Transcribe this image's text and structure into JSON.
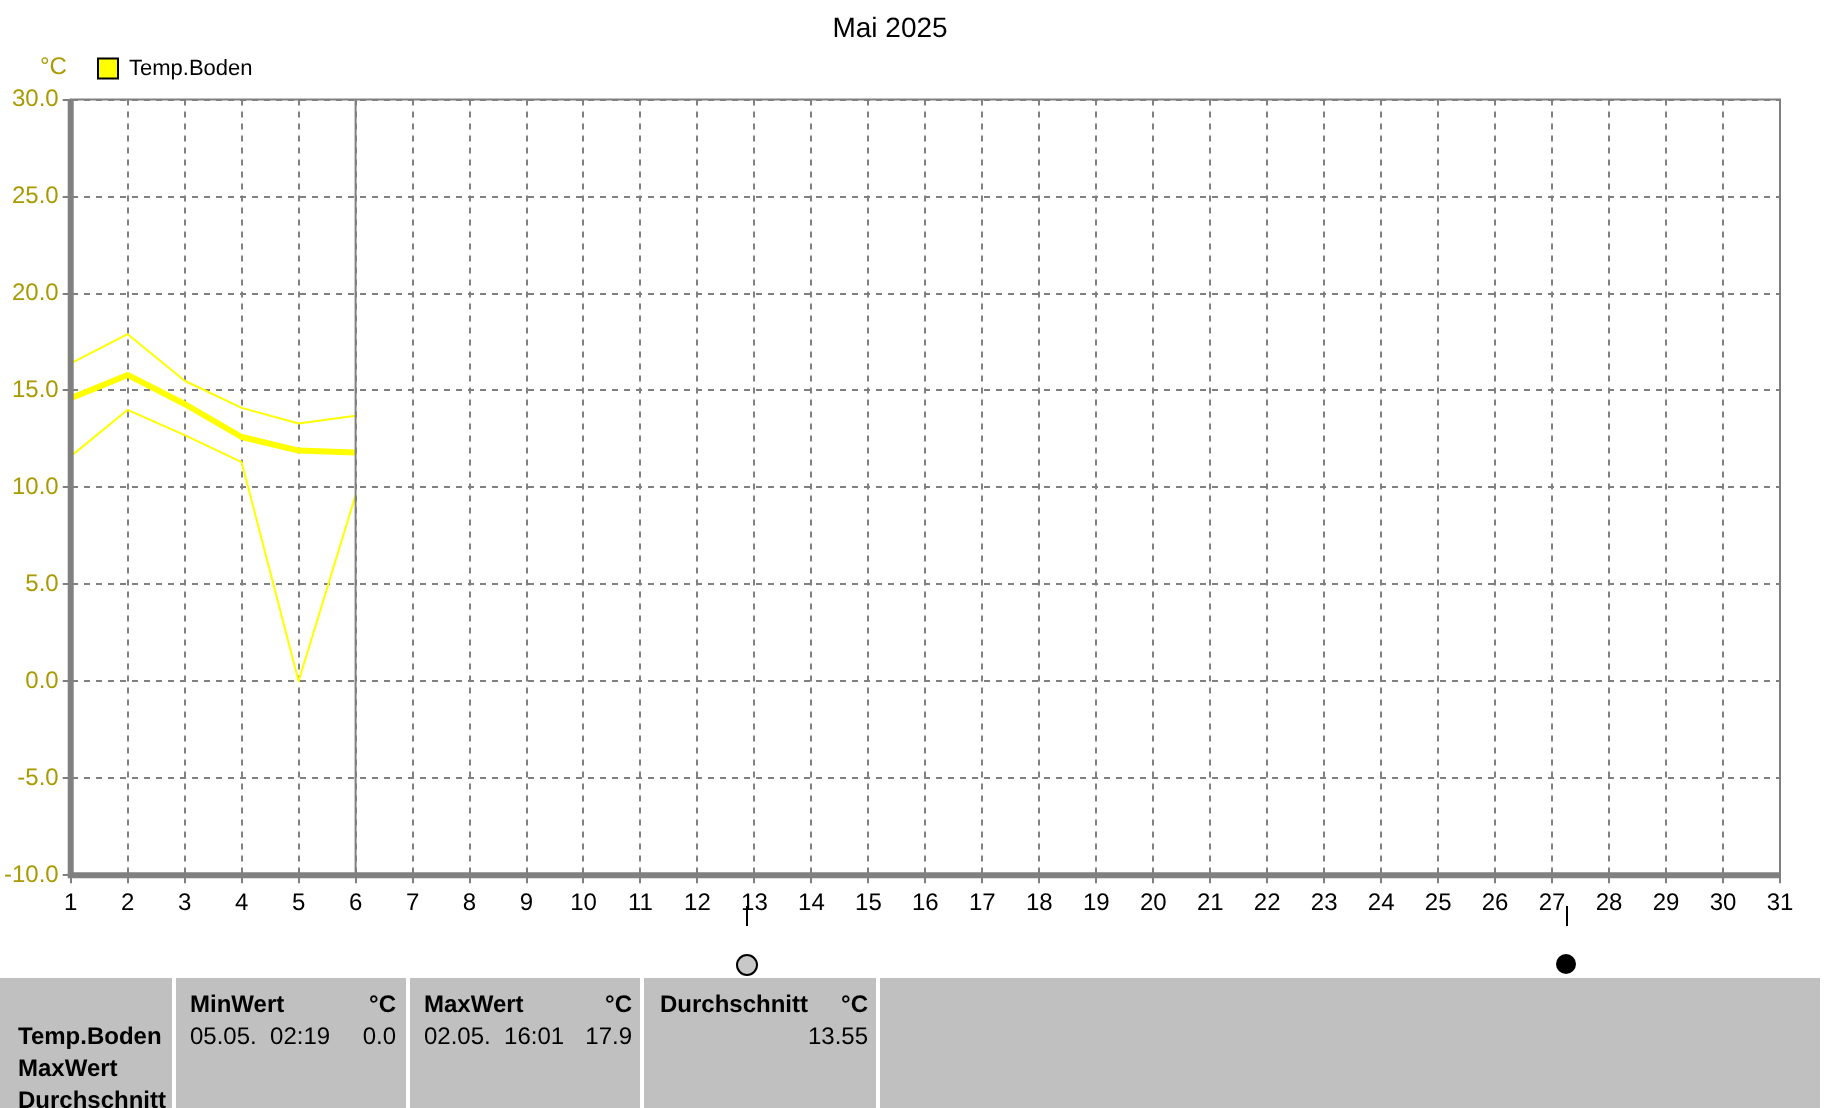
{
  "chart_data": {
    "type": "line",
    "title": "Mai 2025",
    "ylabel": "°C",
    "x": [
      1,
      2,
      3,
      4,
      5,
      6
    ],
    "series": [
      {
        "color": "#ffff00",
        "values": [
          16.4,
          17.9,
          15.5,
          14.1,
          13.3,
          13.7
        ]
      },
      {
        "name": "Temp.Boden",
        "color": "#ffff00",
        "values": [
          14.6,
          15.8,
          14.3,
          12.6,
          11.9,
          11.8
        ]
      },
      {
        "color": "#ffff00",
        "values": [
          11.6,
          14.0,
          12.7,
          11.3,
          0.0,
          9.6
        ]
      }
    ],
    "xlim": [
      1,
      31
    ],
    "xticks": [
      1,
      2,
      3,
      4,
      5,
      6,
      7,
      8,
      9,
      10,
      11,
      12,
      13,
      14,
      15,
      16,
      17,
      18,
      19,
      20,
      21,
      22,
      23,
      24,
      25,
      26,
      27,
      28,
      29,
      30,
      31
    ],
    "ylim": [
      -10,
      30
    ],
    "yticks": [
      {
        "value": -10,
        "label": "-10.0"
      },
      {
        "value": -5,
        "label": "-5.0"
      },
      {
        "value": 0,
        "label": "0.0"
      },
      {
        "value": 5,
        "label": "5.0"
      },
      {
        "value": 10,
        "label": "10.0"
      },
      {
        "value": 15,
        "label": "15.0"
      },
      {
        "value": 20,
        "label": "20.0"
      },
      {
        "value": 25,
        "label": "25.0"
      },
      {
        "value": 30,
        "label": "30.0"
      }
    ],
    "grid": true,
    "legend": "top left",
    "marker": "none",
    "line_style": "solid",
    "ref_lines": [
      {
        "axis": "x",
        "value": 6,
        "color": "#808080"
      }
    ],
    "annotations": [
      "Temp.Boden",
      "MaxWert",
      "Durchschnitt",
      "MinWert",
      "°C",
      "05.05.  02:19",
      "0.0",
      "MaxWert",
      "°C",
      "02.05.  16:01",
      "17.9",
      "Durchschnitt",
      "°C",
      "13.55"
    ]
  }
}
